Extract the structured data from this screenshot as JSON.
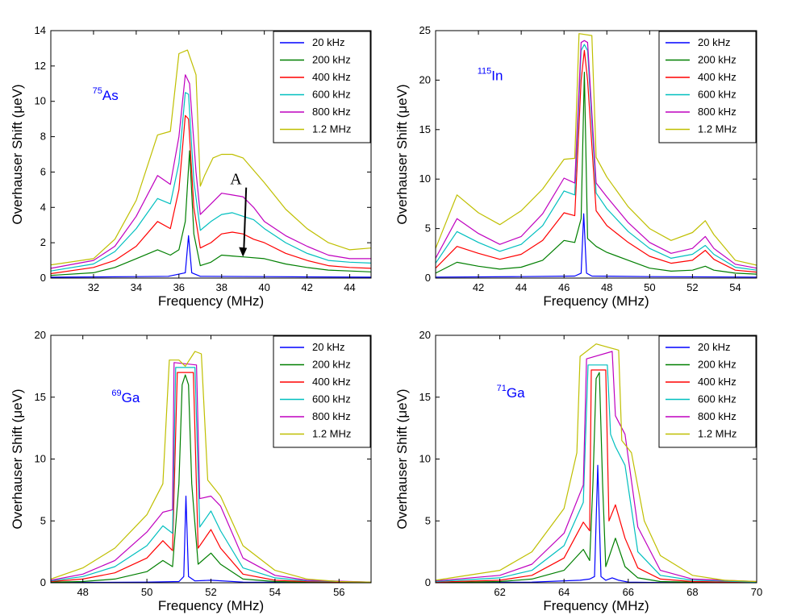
{
  "legend_entries": [
    "20 kHz",
    "200 kHz",
    "400 kHz",
    "600 kHz",
    "800 kHz",
    "1.2 MHz"
  ],
  "series_colors": [
    "#0000ff",
    "#007f00",
    "#ff0000",
    "#00bfbf",
    "#bf00bf",
    "#bfbf00"
  ],
  "isotope_color": "#0000ff",
  "chart_data": [
    {
      "type": "line",
      "xlabel": "Frequency (MHz)",
      "ylabel": "Overhauser Shift (μeV)",
      "xlim": [
        30,
        45
      ],
      "ylim": [
        0,
        14
      ],
      "xticks": [
        32,
        34,
        36,
        38,
        40,
        42,
        44
      ],
      "yticks": [
        0,
        2,
        4,
        6,
        8,
        10,
        12,
        14
      ],
      "isotope": {
        "mass": "75",
        "symbol": "As"
      },
      "legend": "top-right",
      "annotation": {
        "text": "A",
        "x": 39.0,
        "y": 1.2
      },
      "series": [
        {
          "name": "20 kHz",
          "x": [
            30,
            34,
            35.5,
            36.3,
            36.45,
            36.6,
            37,
            40,
            45
          ],
          "y": [
            0.05,
            0.08,
            0.1,
            0.3,
            2.4,
            0.3,
            0.1,
            0.08,
            0.05
          ]
        },
        {
          "name": "200 kHz",
          "x": [
            30,
            32,
            33,
            34,
            35,
            35.6,
            36,
            36.3,
            36.5,
            36.7,
            37,
            37.5,
            38,
            38.5,
            39,
            40,
            41,
            42,
            43,
            44,
            45
          ],
          "y": [
            0.15,
            0.3,
            0.6,
            1.1,
            1.6,
            1.3,
            1.6,
            3.2,
            7.2,
            2.5,
            0.7,
            0.9,
            1.3,
            1.25,
            1.2,
            1.1,
            0.8,
            0.6,
            0.45,
            0.4,
            0.35
          ]
        },
        {
          "name": "400 kHz",
          "x": [
            30,
            32,
            33,
            34,
            35,
            35.6,
            36,
            36.3,
            36.45,
            36.7,
            37,
            37.5,
            38,
            38.5,
            39,
            39.5,
            40,
            41,
            42,
            43,
            44,
            45
          ],
          "y": [
            0.25,
            0.6,
            1.0,
            1.8,
            3.2,
            2.8,
            5.0,
            9.2,
            9.0,
            4.0,
            1.7,
            2.0,
            2.5,
            2.6,
            2.5,
            2.2,
            2.0,
            1.4,
            1.0,
            0.7,
            0.6,
            0.55
          ]
        },
        {
          "name": "600 kHz",
          "x": [
            30,
            32,
            33,
            34,
            35,
            35.6,
            36,
            36.3,
            36.45,
            36.7,
            37,
            37.5,
            38,
            38.5,
            39,
            39.5,
            40,
            41,
            42,
            43,
            44,
            45
          ],
          "y": [
            0.4,
            0.8,
            1.5,
            2.8,
            4.5,
            4.2,
            6.5,
            10.5,
            10.4,
            5.5,
            2.7,
            3.2,
            3.6,
            3.7,
            3.5,
            3.3,
            2.8,
            2.0,
            1.4,
            1.0,
            0.9,
            0.85
          ]
        },
        {
          "name": "800 kHz",
          "x": [
            30,
            32,
            33,
            34,
            35,
            35.6,
            36,
            36.3,
            36.5,
            36.8,
            37,
            37.5,
            38,
            38.5,
            39,
            39.5,
            40,
            41,
            42,
            43,
            44,
            45
          ],
          "y": [
            0.55,
            1.0,
            1.8,
            3.5,
            5.8,
            5.3,
            8.0,
            11.5,
            11.0,
            6.0,
            3.6,
            4.2,
            4.8,
            4.7,
            4.6,
            4.0,
            3.2,
            2.4,
            1.8,
            1.3,
            1.1,
            1.1
          ]
        },
        {
          "name": "1.2 MHz",
          "x": [
            30,
            32,
            33,
            34,
            35,
            35.6,
            36,
            36.4,
            36.8,
            37,
            37.2,
            37.6,
            38,
            38.5,
            39,
            40,
            41,
            42,
            43,
            44,
            45
          ],
          "y": [
            0.75,
            1.1,
            2.2,
            4.4,
            8.1,
            8.3,
            12.7,
            12.9,
            11.5,
            5.2,
            5.8,
            6.8,
            7.0,
            7.0,
            6.8,
            5.4,
            3.9,
            2.8,
            2.0,
            1.6,
            1.7
          ]
        }
      ]
    },
    {
      "type": "line",
      "xlabel": "Frequency (MHz)",
      "ylabel": "Overhauser Shift (μeV)",
      "xlim": [
        40,
        55
      ],
      "ylim": [
        0,
        25
      ],
      "xticks": [
        42,
        44,
        46,
        48,
        50,
        52,
        54
      ],
      "yticks": [
        0,
        5,
        10,
        15,
        20,
        25
      ],
      "isotope": {
        "mass": "115",
        "symbol": "In"
      },
      "legend": "top-right",
      "series": [
        {
          "name": "20 kHz",
          "x": [
            40,
            44,
            46.5,
            46.8,
            46.92,
            47.05,
            47.3,
            50,
            55
          ],
          "y": [
            0.1,
            0.15,
            0.2,
            0.5,
            6.5,
            0.5,
            0.2,
            0.15,
            0.1
          ]
        },
        {
          "name": "200 kHz",
          "x": [
            40,
            41,
            42,
            43,
            44,
            45,
            46,
            46.5,
            46.8,
            46.95,
            47.1,
            47.5,
            48,
            49,
            50,
            51,
            52,
            52.6,
            53,
            54,
            55
          ],
          "y": [
            0.5,
            1.6,
            1.2,
            0.9,
            1.1,
            1.8,
            3.8,
            3.6,
            6.0,
            20.8,
            4.0,
            3.2,
            2.6,
            1.8,
            1.0,
            0.7,
            0.8,
            1.2,
            0.8,
            0.5,
            0.4
          ]
        },
        {
          "name": "400 kHz",
          "x": [
            40,
            41,
            42,
            43,
            44,
            45,
            46,
            46.5,
            46.8,
            46.95,
            47.1,
            47.5,
            48,
            49,
            50,
            51,
            52,
            52.6,
            53,
            54,
            55
          ],
          "y": [
            1.0,
            3.2,
            2.5,
            1.9,
            2.4,
            3.8,
            6.6,
            6.3,
            20.0,
            23.0,
            20.0,
            6.8,
            5.3,
            3.6,
            2.2,
            1.5,
            1.8,
            2.8,
            1.9,
            0.8,
            0.6
          ]
        },
        {
          "name": "600 kHz",
          "x": [
            40,
            41,
            42,
            43,
            44,
            45,
            46,
            46.5,
            46.8,
            46.95,
            47.1,
            47.5,
            48,
            49,
            50,
            51,
            52,
            52.6,
            53,
            54,
            55
          ],
          "y": [
            1.5,
            4.7,
            3.6,
            2.7,
            3.4,
            5.3,
            8.8,
            8.4,
            23.0,
            23.6,
            23.0,
            8.6,
            7.0,
            4.7,
            3.0,
            2.0,
            2.4,
            3.3,
            2.4,
            1.1,
            0.8
          ]
        },
        {
          "name": "800 kHz",
          "x": [
            40,
            41,
            42,
            43,
            44,
            45,
            46,
            46.5,
            46.8,
            46.95,
            47.1,
            47.5,
            48,
            49,
            50,
            51,
            52,
            52.6,
            53,
            54,
            55
          ],
          "y": [
            2.0,
            6.0,
            4.5,
            3.4,
            4.2,
            6.5,
            10.1,
            9.6,
            23.8,
            24.0,
            23.8,
            9.6,
            8.2,
            5.6,
            3.6,
            2.5,
            3.0,
            4.2,
            3.0,
            1.4,
            1.0
          ]
        },
        {
          "name": "1.2 MHz",
          "x": [
            40,
            41,
            42,
            43,
            44,
            45,
            46,
            46.5,
            46.7,
            47.3,
            47.5,
            48,
            49,
            50,
            51,
            52,
            52.6,
            53,
            54,
            55
          ],
          "y": [
            3.0,
            8.4,
            6.6,
            5.4,
            6.8,
            9.0,
            12.0,
            12.1,
            24.7,
            24.5,
            12.2,
            10.2,
            7.2,
            5.0,
            3.8,
            4.6,
            5.8,
            4.4,
            1.8,
            1.3
          ]
        }
      ]
    },
    {
      "type": "line",
      "xlabel": "Frequency (MHz)",
      "ylabel": "Overhauser Shift (μeV)",
      "xlim": [
        47,
        57
      ],
      "ylim": [
        0,
        20
      ],
      "xticks": [
        48,
        50,
        52,
        54,
        56
      ],
      "yticks": [
        0,
        5,
        10,
        15,
        20
      ],
      "isotope": {
        "mass": "69",
        "symbol": "Ga"
      },
      "legend": "top-right",
      "series": [
        {
          "name": "20 kHz",
          "x": [
            47,
            50,
            51,
            51.15,
            51.22,
            51.3,
            51.5,
            52,
            53,
            57
          ],
          "y": [
            0.02,
            0.05,
            0.1,
            0.5,
            7.0,
            0.5,
            0.15,
            0.2,
            0.05,
            0.02
          ]
        },
        {
          "name": "200 kHz",
          "x": [
            47,
            48,
            49,
            50,
            50.5,
            50.8,
            51,
            51.1,
            51.2,
            51.3,
            51.4,
            51.6,
            52,
            52.3,
            53,
            54,
            55,
            57
          ],
          "y": [
            0.05,
            0.1,
            0.3,
            0.9,
            1.8,
            1.3,
            8.0,
            16.0,
            16.8,
            16.0,
            8.0,
            1.5,
            2.4,
            1.5,
            0.3,
            0.1,
            0.05,
            0.02
          ]
        },
        {
          "name": "400 kHz",
          "x": [
            47,
            48,
            49,
            50,
            50.5,
            50.8,
            50.95,
            51.45,
            51.6,
            52,
            52.3,
            53,
            54,
            55,
            57
          ],
          "y": [
            0.1,
            0.3,
            0.8,
            2.0,
            3.4,
            2.6,
            17.0,
            17.0,
            2.8,
            4.3,
            2.8,
            0.7,
            0.2,
            0.1,
            0.05
          ]
        },
        {
          "name": "600 kHz",
          "x": [
            47,
            48,
            49,
            50,
            50.5,
            50.8,
            50.9,
            51.5,
            51.65,
            52,
            52.3,
            53,
            54,
            55,
            57
          ],
          "y": [
            0.15,
            0.5,
            1.3,
            3.0,
            4.6,
            4.0,
            17.4,
            17.4,
            4.5,
            5.8,
            4.2,
            1.2,
            0.4,
            0.15,
            0.05
          ]
        },
        {
          "name": "800 kHz",
          "x": [
            47,
            48,
            49,
            50,
            50.5,
            50.8,
            50.85,
            51.55,
            51.65,
            52,
            52.3,
            53,
            54,
            55,
            57
          ],
          "y": [
            0.2,
            0.7,
            1.8,
            4.1,
            5.7,
            5.9,
            17.8,
            17.6,
            6.8,
            7.0,
            6.2,
            2.0,
            0.6,
            0.2,
            0.05
          ]
        },
        {
          "name": "1.2 MHz",
          "x": [
            47,
            48,
            49,
            50,
            50.5,
            50.7,
            51,
            51.2,
            51.5,
            51.7,
            51.9,
            52.3,
            53,
            54,
            55,
            56,
            57
          ],
          "y": [
            0.3,
            1.2,
            2.8,
            5.5,
            8.0,
            18.0,
            18.0,
            17.5,
            18.7,
            18.5,
            8.3,
            7.0,
            3.0,
            1.0,
            0.3,
            0.1,
            0.05
          ]
        }
      ]
    },
    {
      "type": "line",
      "xlabel": "Frequency (MHz)",
      "ylabel": "Overhauser Shift (μeV)",
      "xlim": [
        60,
        70
      ],
      "ylim": [
        0,
        20
      ],
      "xticks": [
        62,
        64,
        66,
        68,
        70
      ],
      "yticks": [
        0,
        5,
        10,
        15,
        20
      ],
      "isotope": {
        "mass": "71",
        "symbol": "Ga"
      },
      "legend": "top-right",
      "series": [
        {
          "name": "20 kHz",
          "x": [
            60,
            63,
            64.5,
            64.8,
            64.95,
            65.05,
            65.15,
            65.3,
            65.5,
            65.7,
            66,
            67,
            70
          ],
          "y": [
            0.02,
            0.05,
            0.2,
            0.3,
            0.5,
            9.5,
            0.5,
            0.2,
            0.4,
            0.2,
            0.05,
            0.02,
            0.01
          ]
        },
        {
          "name": "200 kHz",
          "x": [
            60,
            62,
            63,
            64,
            64.6,
            64.8,
            64.9,
            65.0,
            65.1,
            65.2,
            65.3,
            65.6,
            65.9,
            66.3,
            67,
            68,
            70
          ],
          "y": [
            0.02,
            0.1,
            0.3,
            1.0,
            2.7,
            1.8,
            8.0,
            16.5,
            17.0,
            8.0,
            1.3,
            3.6,
            1.3,
            0.4,
            0.1,
            0.05,
            0.02
          ]
        },
        {
          "name": "400 kHz",
          "x": [
            60,
            62,
            63,
            64,
            64.6,
            64.8,
            64.85,
            65.3,
            65.4,
            65.6,
            65.9,
            66.3,
            67,
            68,
            70
          ],
          "y": [
            0.05,
            0.2,
            0.6,
            2.0,
            4.9,
            4.2,
            17.2,
            17.2,
            5.0,
            6.3,
            3.6,
            1.2,
            0.3,
            0.1,
            0.03
          ]
        },
        {
          "name": "600 kHz",
          "x": [
            60,
            62,
            63,
            64,
            64.6,
            64.75,
            65.35,
            65.45,
            65.6,
            65.9,
            66.3,
            67,
            68,
            70
          ],
          "y": [
            0.1,
            0.4,
            1.0,
            3.0,
            6.5,
            17.6,
            17.6,
            12.0,
            11.0,
            9.5,
            2.5,
            0.6,
            0.2,
            0.05
          ]
        },
        {
          "name": "800 kHz",
          "x": [
            60,
            62,
            63,
            64,
            64.6,
            64.7,
            65.5,
            65.6,
            65.9,
            66.3,
            67,
            68,
            70
          ],
          "y": [
            0.15,
            0.6,
            1.5,
            4.0,
            7.9,
            18.1,
            18.7,
            13.5,
            12.0,
            4.5,
            1.0,
            0.3,
            0.1
          ]
        },
        {
          "name": "1.2 MHz",
          "x": [
            60,
            62,
            63,
            64,
            64.4,
            64.5,
            65,
            65.7,
            65.8,
            66.1,
            66.5,
            67,
            68,
            69,
            70
          ],
          "y": [
            0.2,
            1.0,
            2.5,
            6.0,
            10.5,
            18.3,
            19.3,
            18.8,
            11.5,
            10.5,
            5.0,
            2.2,
            0.6,
            0.2,
            0.1
          ]
        }
      ]
    }
  ]
}
